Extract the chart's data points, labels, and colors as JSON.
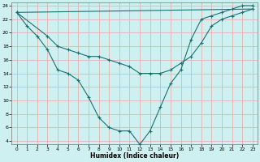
{
  "xlabel": "Humidex (Indice chaleur)",
  "background_color": "#cff0f0",
  "grid_color": "#e8b0b0",
  "line_color": "#1a7070",
  "xlim": [
    -0.5,
    23.5
  ],
  "ylim": [
    3.5,
    24.5
  ],
  "xticks": [
    0,
    1,
    2,
    3,
    4,
    5,
    6,
    7,
    8,
    9,
    10,
    11,
    12,
    13,
    14,
    15,
    16,
    17,
    18,
    19,
    20,
    21,
    22,
    23
  ],
  "yticks": [
    4,
    6,
    8,
    10,
    12,
    14,
    16,
    18,
    20,
    22,
    24
  ],
  "line1_x": [
    0,
    1,
    2,
    3,
    4,
    5,
    6,
    7,
    8,
    9,
    10,
    11,
    12,
    13,
    14,
    15,
    16,
    17,
    18,
    19,
    20,
    21,
    22,
    23
  ],
  "line1_y": [
    23,
    21,
    19.5,
    17.5,
    14.5,
    14,
    13,
    10.5,
    7.5,
    6,
    5.5,
    5.5,
    3.5,
    5.5,
    9,
    12.5,
    14.5,
    19,
    22,
    22.5,
    23,
    23.5,
    24,
    24
  ],
  "line2_x": [
    0,
    23
  ],
  "line2_y": [
    23,
    23.5
  ],
  "line3_x": [
    0,
    3,
    4,
    5,
    6,
    7,
    8,
    9,
    10,
    11,
    12,
    13,
    14,
    15,
    16,
    17,
    18,
    19,
    20,
    21,
    22,
    23
  ],
  "line3_y": [
    23,
    19.5,
    18,
    17.5,
    17,
    16.5,
    16.5,
    16,
    15.5,
    15,
    14,
    14,
    14,
    14.5,
    15.5,
    16.5,
    18.5,
    21,
    22,
    22.5,
    23,
    23.5
  ]
}
